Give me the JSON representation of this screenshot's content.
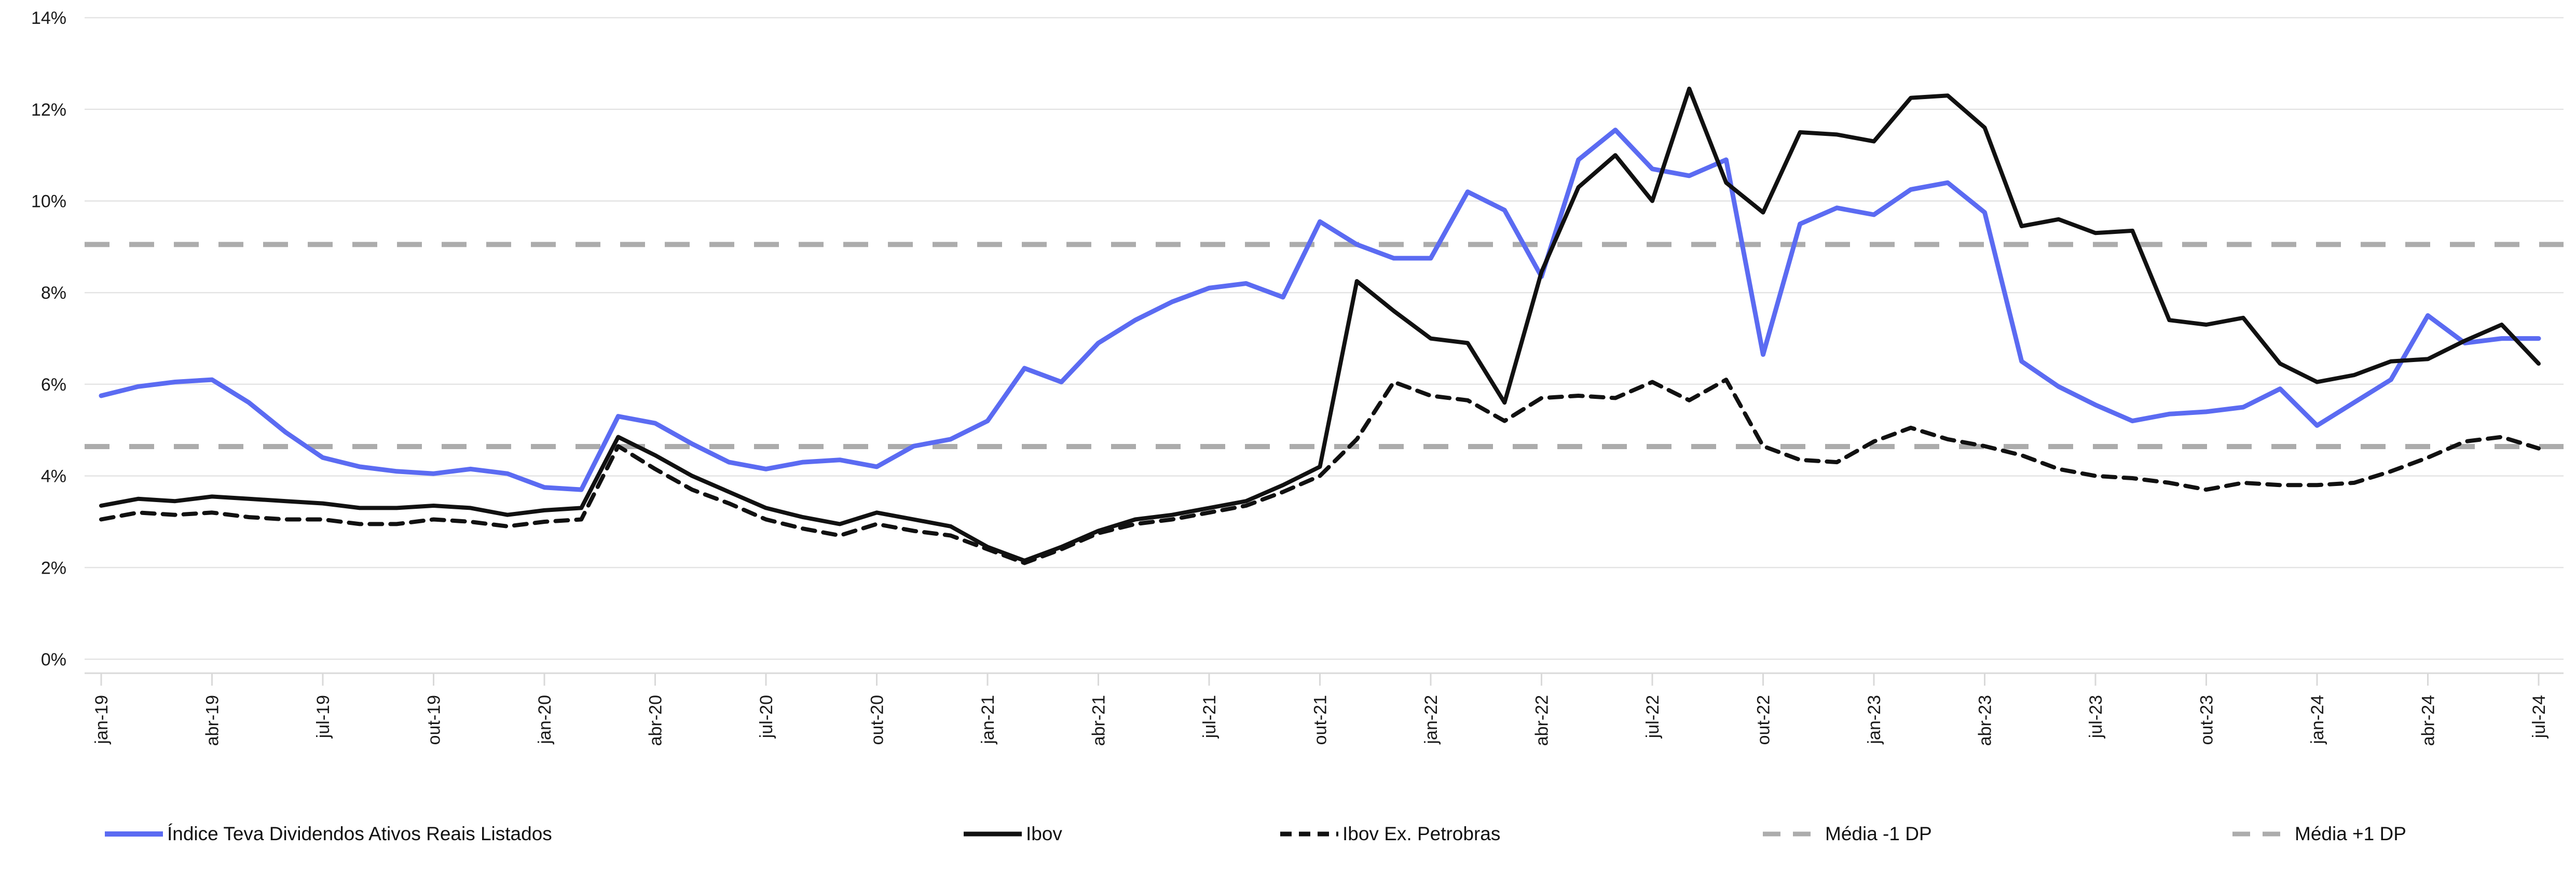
{
  "chart_data": {
    "type": "line",
    "title": "",
    "ylabel": "",
    "xlabel": "",
    "ylim": [
      0,
      14
    ],
    "ytick_step": 2,
    "ytick_suffix": "%",
    "ytick_labels": [
      "0%",
      "2%",
      "4%",
      "6%",
      "8%",
      "10%",
      "12%",
      "14%"
    ],
    "grid": "horizontal",
    "legend_position": "bottom",
    "x_monthly_start": "jan-19",
    "x_monthly_end": "jul-24",
    "x_labels": [
      "jan-19",
      "abr-19",
      "jul-19",
      "out-19",
      "jan-20",
      "abr-20",
      "jul-20",
      "out-20",
      "jan-21",
      "abr-21",
      "jul-21",
      "out-21",
      "jan-22",
      "abr-22",
      "jul-22",
      "out-22",
      "jan-23",
      "abr-23",
      "jul-23",
      "out-23",
      "jan-24",
      "abr-24",
      "jul-24"
    ],
    "series": [
      {
        "name": "Índice Teva Dividendos Ativos Reais Listados",
        "color": "#5B6BF2",
        "style": "solid",
        "values": [
          5.75,
          5.95,
          6.05,
          6.1,
          5.6,
          4.95,
          4.4,
          4.2,
          4.1,
          4.05,
          4.15,
          4.05,
          3.75,
          3.7,
          5.3,
          5.15,
          4.7,
          4.3,
          4.15,
          4.3,
          4.35,
          4.2,
          4.65,
          4.8,
          5.2,
          6.35,
          6.05,
          6.9,
          7.4,
          7.8,
          8.1,
          8.2,
          7.9,
          9.55,
          9.05,
          8.75,
          8.75,
          10.2,
          9.8,
          8.35,
          10.9,
          11.55,
          10.7,
          10.55,
          10.9,
          6.65,
          9.5,
          9.85,
          9.7,
          10.25,
          10.4,
          9.75,
          6.5,
          5.95,
          5.55,
          5.2,
          5.35,
          5.4,
          5.5,
          5.9,
          5.1,
          5.6,
          6.1,
          7.5,
          6.9,
          7.0,
          7.0
        ]
      },
      {
        "name": "Ibov",
        "color": "#111111",
        "style": "solid",
        "values": [
          3.35,
          3.5,
          3.45,
          3.55,
          3.5,
          3.45,
          3.4,
          3.3,
          3.3,
          3.35,
          3.3,
          3.15,
          3.25,
          3.3,
          4.85,
          4.45,
          4.0,
          3.65,
          3.3,
          3.1,
          2.95,
          3.2,
          3.05,
          2.9,
          2.45,
          2.15,
          2.45,
          2.8,
          3.05,
          3.15,
          3.3,
          3.45,
          3.8,
          4.2,
          8.25,
          7.6,
          7.0,
          6.9,
          5.6,
          8.45,
          10.3,
          11.0,
          10.0,
          12.45,
          10.4,
          9.75,
          11.5,
          11.45,
          11.3,
          12.25,
          12.3,
          11.6,
          9.45,
          9.6,
          9.3,
          9.35,
          7.4,
          7.3,
          7.45,
          6.45,
          6.05,
          6.2,
          6.5,
          6.55,
          6.95,
          7.3,
          6.45
        ]
      },
      {
        "name": "Ibov Ex. Petrobras",
        "color": "#111111",
        "style": "dashed",
        "values": [
          3.05,
          3.2,
          3.15,
          3.2,
          3.1,
          3.05,
          3.05,
          2.95,
          2.95,
          3.05,
          3.0,
          2.9,
          3.0,
          3.05,
          4.65,
          4.15,
          3.7,
          3.4,
          3.05,
          2.85,
          2.7,
          2.95,
          2.8,
          2.7,
          2.4,
          2.1,
          2.4,
          2.75,
          2.95,
          3.05,
          3.2,
          3.35,
          3.65,
          4.0,
          4.8,
          6.05,
          5.75,
          5.65,
          5.2,
          5.7,
          5.75,
          5.7,
          6.05,
          5.65,
          6.1,
          4.65,
          4.35,
          4.3,
          4.75,
          5.05,
          4.8,
          4.65,
          4.45,
          4.15,
          4.0,
          3.95,
          3.85,
          3.7,
          3.85,
          3.8,
          3.8,
          3.85,
          4.1,
          4.4,
          4.75,
          4.85,
          4.6
        ]
      },
      {
        "name": "Média -1 DP",
        "color": "#ACACAC",
        "style": "dashed-horizontal",
        "value": 4.64
      },
      {
        "name": "Média +1 DP",
        "color": "#ACACAC",
        "style": "dashed-horizontal",
        "value": 9.05
      }
    ],
    "colors": {
      "gridline": "#E4E4E4",
      "axis_tick": "#D9D9D9",
      "text": "#1a1a1a",
      "background": "#ffffff",
      "mean_line": "#ACACAC",
      "teva_blue": "#5B6BF2",
      "ibov_black": "#111111"
    }
  }
}
